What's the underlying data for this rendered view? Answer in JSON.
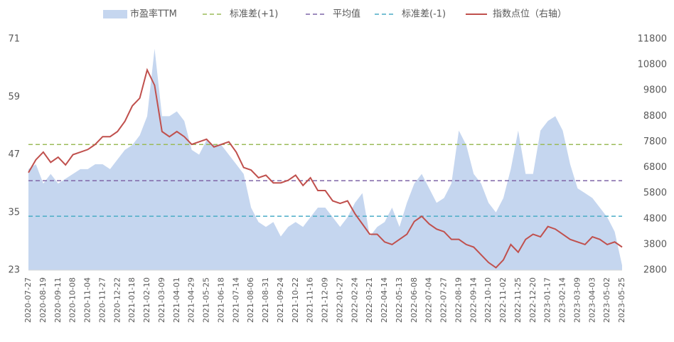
{
  "chart_data": {
    "type": "combo",
    "categories": [
      "2020-07-27",
      null,
      "2020-08-19",
      null,
      "2020-09-11",
      null,
      "2020-10-08",
      null,
      "2020-11-04",
      null,
      "2020-11-27",
      null,
      "2020-12-22",
      null,
      "2021-01-18",
      null,
      "2021-02-10",
      null,
      "2021-03-09",
      null,
      "2021-04-01",
      null,
      "2021-04-29",
      null,
      "2021-05-25",
      null,
      "2021-06-18",
      null,
      "2021-07-14",
      null,
      "2021-08-06",
      null,
      "2021-08-31",
      null,
      "2021-09-24",
      null,
      "2021-10-22",
      null,
      "2021-11-16",
      null,
      "2021-12-09",
      null,
      "2022-01-27",
      null,
      "2022-02-24",
      null,
      "2022-03-21",
      null,
      "2022-04-14",
      null,
      "2022-05-13",
      null,
      "2022-06-08",
      null,
      "2022-07-04",
      null,
      "2022-07-27",
      null,
      "2022-08-19",
      null,
      "2022-09-14",
      null,
      "2022-10-10",
      null,
      "2022-11-02",
      null,
      "2022-11-25",
      null,
      "2022-12-20",
      null,
      "2023-01-17",
      null,
      "2023-02-14",
      null,
      "2023-03-09",
      null,
      "2023-04-03",
      null,
      "2023-05-02",
      null,
      "2023-05-25"
    ],
    "series": [
      {
        "name": "市盈率TTM",
        "type": "area",
        "color": "#c5d6ef",
        "values": [
          44,
          45,
          41,
          43,
          41,
          42,
          43,
          44,
          44,
          45,
          45,
          44,
          46,
          48,
          49,
          51,
          55,
          69,
          55,
          55,
          56,
          54,
          48,
          47,
          50,
          49,
          49,
          47,
          45,
          43,
          36,
          33,
          32,
          33,
          30,
          32,
          33,
          32,
          34,
          36,
          36,
          34,
          32,
          34,
          37,
          39,
          30,
          32,
          33,
          36,
          32,
          37,
          41,
          43,
          40,
          37,
          38,
          41,
          52,
          49,
          43,
          41,
          37,
          35,
          38,
          44,
          52,
          43,
          43,
          52,
          54,
          55,
          52,
          45,
          40,
          39,
          38,
          36,
          34,
          31,
          24
        ]
      },
      {
        "name": "标准差(+1)",
        "type": "hline",
        "color": "#9bbb59",
        "value": 49.1
      },
      {
        "name": "平均值",
        "type": "hline",
        "color": "#7f66a8",
        "value": 41.6
      },
      {
        "name": "标准差(-1)",
        "type": "hline",
        "color": "#4bacc6",
        "value": 34.2
      },
      {
        "name": "指数点位（右轴）",
        "type": "line",
        "axis": "y2",
        "color": "#c0504d",
        "values": [
          6600,
          7100,
          7400,
          7000,
          7200,
          6900,
          7300,
          7400,
          7500,
          7700,
          8000,
          8000,
          8200,
          8600,
          9200,
          9500,
          10600,
          10000,
          8200,
          8000,
          8200,
          8000,
          7700,
          7800,
          7900,
          7600,
          7700,
          7800,
          7400,
          6800,
          6700,
          6400,
          6500,
          6200,
          6200,
          6300,
          6500,
          6100,
          6400,
          5900,
          5900,
          5500,
          5400,
          5500,
          5000,
          4600,
          4200,
          4200,
          3900,
          3800,
          4000,
          4200,
          4700,
          4900,
          4600,
          4400,
          4300,
          4000,
          4000,
          3800,
          3700,
          3400,
          3100,
          2900,
          3200,
          3800,
          3500,
          4000,
          4200,
          4100,
          4500,
          4400,
          4200,
          4000,
          3900,
          3800,
          4100,
          4000,
          3800,
          3900,
          3700
        ]
      }
    ],
    "ylim": [
      23,
      71
    ],
    "yticks": [
      23,
      35,
      47,
      59,
      71
    ],
    "y2lim": [
      2800,
      11800
    ],
    "y2ticks": [
      2800,
      3800,
      4800,
      5800,
      6800,
      7800,
      8800,
      9800,
      10800,
      11800
    ]
  }
}
